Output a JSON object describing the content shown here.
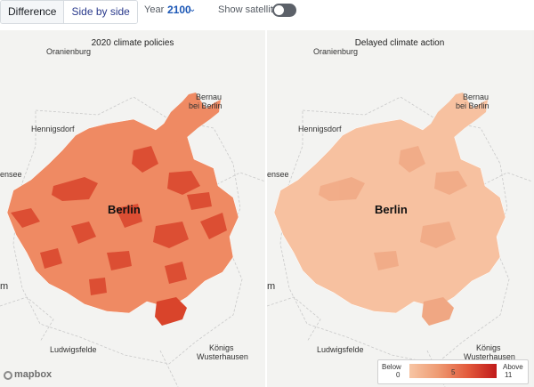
{
  "toolbar": {
    "tabs": [
      {
        "label": "Difference"
      },
      {
        "label": "Side by side"
      }
    ],
    "year_label": "Year",
    "year_value": "2100",
    "satellite_label": "Show satellite",
    "satellite_on": false
  },
  "panels": [
    {
      "title": "2020 climate policies",
      "fill_base": "#ef8a63",
      "fill_dark": "#d9442b",
      "places": [
        "Oranienburg",
        "Bernau",
        "bei Berlin",
        "Hennigsdorf",
        "ensee",
        "Berlin",
        "Ludwigsfelde",
        "Königs",
        "Wusterhausen",
        "m"
      ]
    },
    {
      "title": "Delayed climate action",
      "fill_base": "#f7c1a0",
      "fill_dark": "#f0a783",
      "places": [
        "Oranienburg",
        "Bernau",
        "bei Berlin",
        "Hennigsdorf",
        "ensee",
        "Berlin",
        "Ludwigsfelde",
        "Königs",
        "Wusterhausen",
        "m"
      ]
    }
  ],
  "attribution": "mapbox",
  "legend": {
    "below_label": "Below",
    "min": "0",
    "mid": "5",
    "above_label": "Above",
    "max": "11",
    "color_low": "#f7c5a4",
    "color_high": "#c01a1a"
  }
}
